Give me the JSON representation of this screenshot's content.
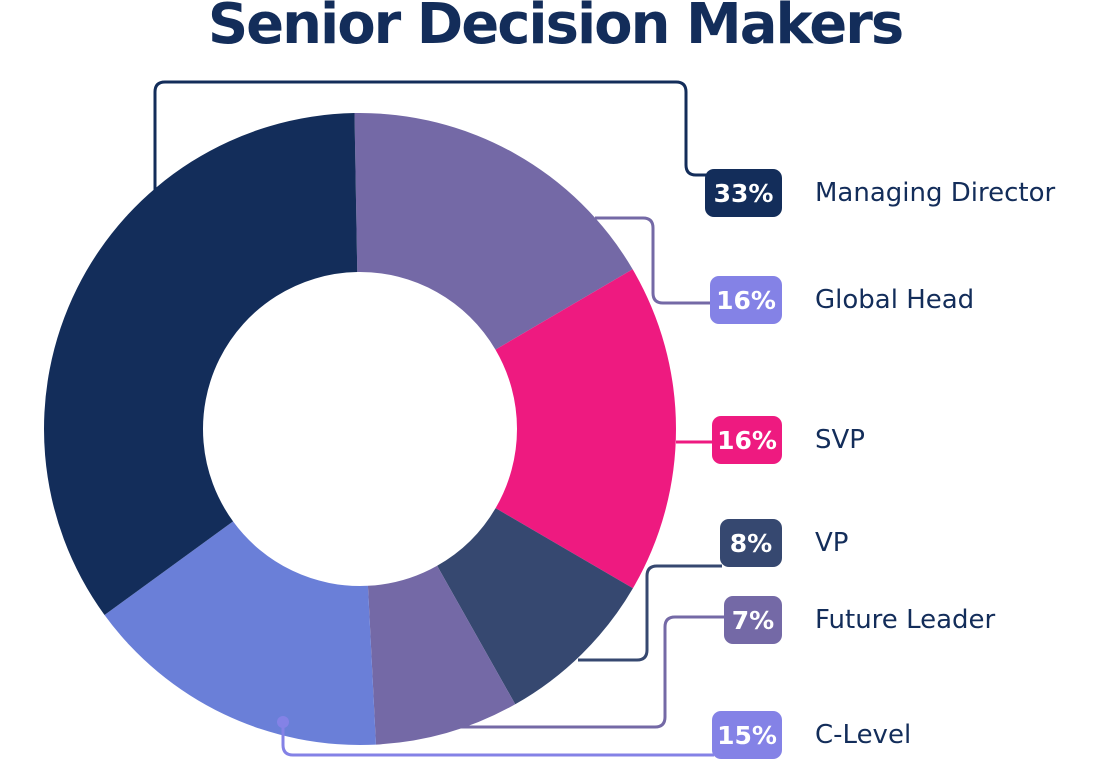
{
  "chart_data": {
    "type": "pie",
    "variant": "donut",
    "title": "Senior Decision Makers",
    "categories": [
      "Global Head",
      "SVP",
      "VP",
      "Future Leader",
      "C-Level",
      "Managing Director"
    ],
    "values": [
      16,
      16,
      8,
      7,
      15,
      33
    ],
    "value_labels": [
      "16%",
      "16%",
      "8%",
      "7%",
      "15%",
      "33%"
    ],
    "slice_colors": [
      "#7469a6",
      "#ee1a80",
      "#364870",
      "#7469a6",
      "#6a7fd8",
      "#132d5a"
    ],
    "badge_colors": [
      "#8482e6",
      "#ee1a80",
      "#364870",
      "#7469a6",
      "#8482e6",
      "#132d5a"
    ],
    "legend_placement": "right"
  }
}
